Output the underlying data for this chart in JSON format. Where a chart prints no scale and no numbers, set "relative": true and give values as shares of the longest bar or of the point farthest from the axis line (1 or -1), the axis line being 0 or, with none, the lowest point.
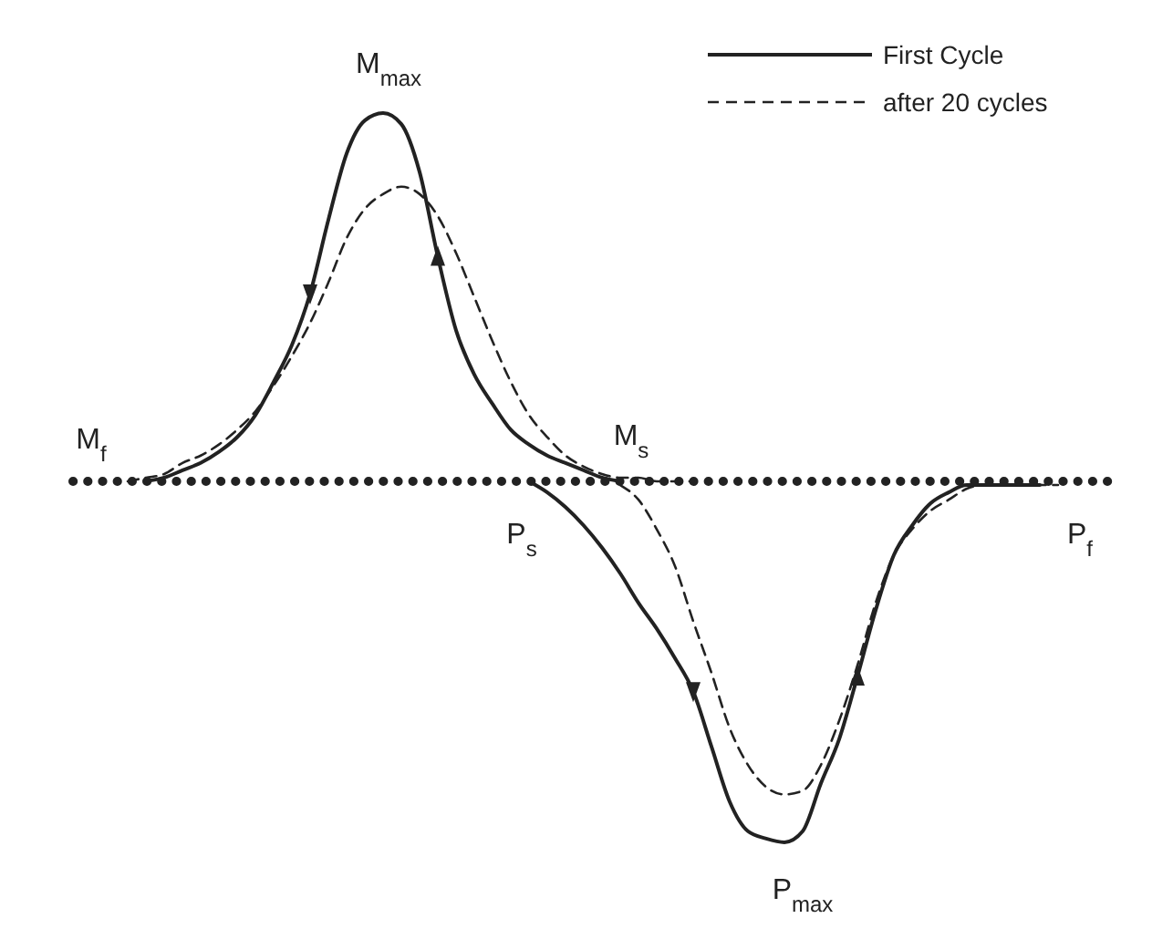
{
  "chart_data": {
    "type": "line",
    "relative": true,
    "legend": "top right",
    "categories": [
      null,
      null,
      null,
      null,
      null,
      null,
      null,
      null,
      null,
      null,
      null,
      null,
      null,
      null,
      null,
      null,
      null,
      null,
      null,
      null,
      null,
      null,
      null,
      null,
      null,
      null,
      null,
      null,
      null,
      null,
      null,
      null,
      null,
      null,
      null,
      null,
      null,
      null,
      null,
      null,
      null,
      null,
      null,
      null,
      null,
      null,
      null,
      null,
      null,
      null,
      null,
      null,
      null,
      null,
      null,
      null,
      null,
      null
    ],
    "series": [
      {
        "name": "First Cycle",
        "color": "#222222",
        "line_style": "solid",
        "values": [
          null,
          null,
          null,
          null,
          0,
          0.01,
          0.03,
          0.05,
          0.08,
          0.12,
          0.18,
          0.27,
          0.37,
          0.51,
          0.71,
          0.89,
          0.98,
          1,
          0.97,
          0.84,
          0.61,
          0.41,
          0.29,
          0.21,
          0.14,
          0.1,
          0.07,
          0.05,
          0.03,
          0.01,
          0,
          null,
          null,
          null,
          null,
          null,
          null,
          null,
          null,
          null,
          null,
          null,
          null,
          null,
          null,
          null,
          null,
          null,
          null,
          null,
          null,
          null,
          null,
          null,
          null,
          null,
          null,
          null
        ]
      },
      {
        "color": "#222222",
        "line_style": "solid",
        "values": [
          null,
          null,
          null,
          null,
          null,
          null,
          null,
          null,
          null,
          null,
          null,
          null,
          null,
          null,
          null,
          null,
          null,
          null,
          null,
          null,
          null,
          null,
          null,
          null,
          null,
          0,
          -0.03,
          -0.07,
          -0.12,
          -0.18,
          -0.25,
          -0.33,
          -0.4,
          -0.48,
          -0.57,
          -0.72,
          -0.87,
          -0.95,
          -0.97,
          -0.98,
          -0.95,
          -0.82,
          -0.7,
          -0.53,
          -0.35,
          -0.2,
          -0.12,
          -0.06,
          -0.03,
          -0.01,
          -0.01,
          -0.01,
          -0.01,
          -0.01,
          null,
          null,
          null,
          null
        ]
      },
      {
        "name": "after 20 cycles",
        "color": "#222222",
        "line_style": "dashed",
        "values": [
          null,
          null,
          null,
          0,
          0.01,
          0.02,
          0.05,
          0.07,
          0.1,
          0.14,
          0.19,
          0.26,
          0.34,
          0.43,
          0.54,
          0.66,
          0.74,
          0.78,
          0.8,
          0.78,
          0.72,
          0.62,
          0.5,
          0.38,
          0.27,
          0.18,
          0.12,
          0.07,
          0.04,
          0.02,
          0.01,
          0.01,
          0,
          0,
          0,
          null,
          null,
          null,
          null,
          null,
          null,
          null,
          null,
          null,
          null,
          null,
          null,
          null,
          null,
          null,
          null,
          null,
          null,
          null,
          null,
          null,
          null,
          null
        ]
      },
      {
        "color": "#222222",
        "line_style": "dashed",
        "values": [
          null,
          null,
          null,
          null,
          null,
          null,
          null,
          null,
          null,
          null,
          null,
          null,
          null,
          null,
          null,
          null,
          null,
          null,
          null,
          null,
          null,
          null,
          null,
          null,
          null,
          null,
          null,
          null,
          null,
          null,
          -0.01,
          -0.05,
          -0.13,
          -0.23,
          -0.38,
          -0.52,
          -0.67,
          -0.77,
          -0.83,
          -0.85,
          -0.84,
          -0.77,
          -0.65,
          -0.5,
          -0.33,
          -0.2,
          -0.13,
          -0.08,
          -0.05,
          -0.02,
          -0.01,
          -0.01,
          -0.01,
          -0.01,
          -0.01,
          null,
          null,
          null
        ]
      }
    ],
    "ref_lines": [
      {
        "axis": "y",
        "value": 0,
        "color": "#222222",
        "line_style": "dotted"
      }
    ],
    "annotations": [
      "M$_{max}$",
      "M$_{f}$",
      "M$_{s}$",
      "P$_{s}$",
      "P$_{f}$",
      "P$_{max}$"
    ]
  }
}
